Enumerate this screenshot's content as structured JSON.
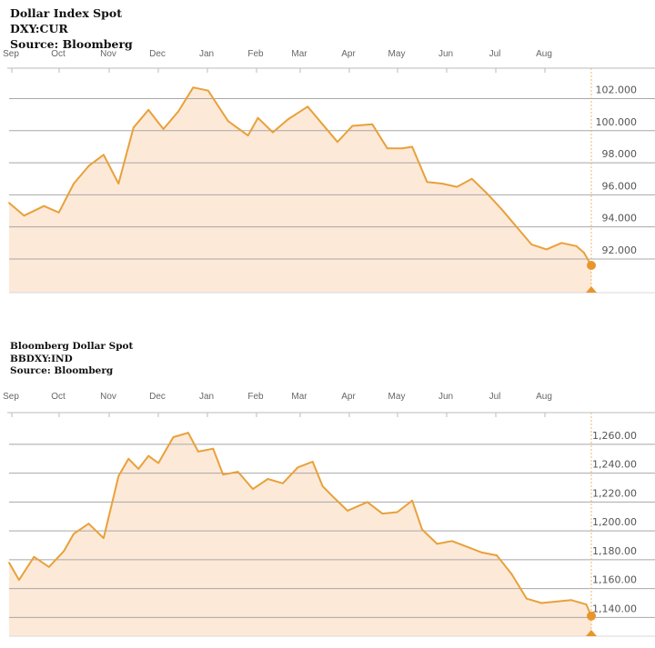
{
  "colors": {
    "line": "#e8a13a",
    "fill": "#fde9d8",
    "grid": "#a8a8a8",
    "marker": "#e8962c",
    "vline": "#f0b86a"
  },
  "chart_data": [
    {
      "type": "area",
      "title": "Dollar Index Spot",
      "subtitle": "DXY:CUR",
      "source": "Source: Bloomberg",
      "months": [
        "Sep",
        "Oct",
        "Nov",
        "Dec",
        "Jan",
        "Feb",
        "Mar",
        "Apr",
        "May",
        "Jun",
        "Jul",
        "Aug"
      ],
      "yticks": [
        "92.000",
        "94.000",
        "96.000",
        "98.000",
        "100.000",
        "102.000"
      ],
      "ylim": [
        89.9,
        103.9
      ],
      "grid": true,
      "x": [
        0,
        0.3,
        0.7,
        1.0,
        1.3,
        1.6,
        1.9,
        2.2,
        2.5,
        2.8,
        3.1,
        3.4,
        3.7,
        4.0,
        4.4,
        4.8,
        5.0,
        5.3,
        5.6,
        6.0,
        6.3,
        6.6,
        6.9,
        7.3,
        7.6,
        7.9,
        8.1,
        8.4,
        8.7,
        9.0,
        9.3,
        9.6,
        9.9,
        10.2,
        10.5,
        10.8,
        11.1,
        11.4,
        11.55,
        11.7
      ],
      "values": [
        95.5,
        94.7,
        95.3,
        94.9,
        96.7,
        97.8,
        98.5,
        96.7,
        100.2,
        101.3,
        100.1,
        101.2,
        102.7,
        102.5,
        100.6,
        99.7,
        100.8,
        99.9,
        100.7,
        101.5,
        100.4,
        99.3,
        100.3,
        100.4,
        98.9,
        98.9,
        99.0,
        96.8,
        96.7,
        96.5,
        97.0,
        96.1,
        95.1,
        94.0,
        92.9,
        92.6,
        93.0,
        92.8,
        92.4,
        91.6
      ]
    },
    {
      "type": "area",
      "title": "Bloomberg Dollar Spot",
      "subtitle": "BBDXY:IND",
      "source": "Source: Bloomberg",
      "months": [
        "Sep",
        "Oct",
        "Nov",
        "Dec",
        "Jan",
        "Feb",
        "Mar",
        "Apr",
        "May",
        "Jun",
        "Jul",
        "Aug"
      ],
      "yticks": [
        "1,140.00",
        "1,160.00",
        "1,180.00",
        "1,200.00",
        "1,220.00",
        "1,240.00",
        "1,260.00"
      ],
      "ylim": [
        1127,
        1282
      ],
      "grid": true,
      "x": [
        0,
        0.2,
        0.5,
        0.8,
        1.1,
        1.3,
        1.6,
        1.9,
        2.2,
        2.4,
        2.6,
        2.8,
        3.0,
        3.3,
        3.6,
        3.8,
        4.1,
        4.3,
        4.6,
        4.9,
        5.2,
        5.5,
        5.8,
        6.1,
        6.3,
        6.5,
        6.8,
        7.2,
        7.5,
        7.8,
        8.1,
        8.3,
        8.6,
        8.9,
        9.2,
        9.5,
        9.8,
        10.1,
        10.4,
        10.7,
        11.0,
        11.3,
        11.6,
        11.7
      ],
      "values": [
        1178,
        1166,
        1182,
        1175,
        1186,
        1198,
        1205,
        1195,
        1238,
        1250,
        1243,
        1252,
        1247,
        1265,
        1268,
        1255,
        1257,
        1239,
        1241,
        1229,
        1236,
        1233,
        1244,
        1248,
        1231,
        1224,
        1214,
        1220,
        1212,
        1213,
        1221,
        1201,
        1191,
        1193,
        1189,
        1185,
        1183,
        1170,
        1153,
        1150,
        1151,
        1152,
        1149,
        1141
      ]
    }
  ]
}
